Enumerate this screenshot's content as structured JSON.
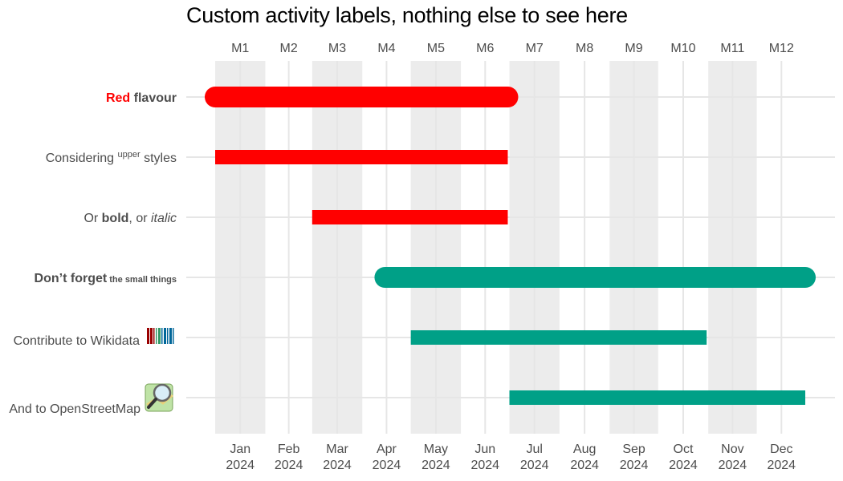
{
  "chart_data": {
    "type": "gantt",
    "title": "Custom activity labels, nothing else to see here",
    "x_axis_bottom": {
      "months": [
        "Jan",
        "Feb",
        "Mar",
        "Apr",
        "May",
        "Jun",
        "Jul",
        "Aug",
        "Sep",
        "Oct",
        "Nov",
        "Dec"
      ],
      "year": "2024"
    },
    "x_axis_top": [
      "M1",
      "M2",
      "M3",
      "M4",
      "M5",
      "M6",
      "M7",
      "M8",
      "M9",
      "M10",
      "M11",
      "M12"
    ],
    "shaded_months": [
      "Jan",
      "Mar",
      "May",
      "Jul",
      "Sep",
      "Nov"
    ],
    "grid": true,
    "activities": [
      {
        "label": [
          {
            "text": "Red",
            "bold": true,
            "color": "#ff0000"
          },
          {
            "text": " flavour",
            "bold": true
          }
        ],
        "start": "2024-01-01",
        "end": "2024-06-30",
        "color": "#ff0000",
        "style": "rounded",
        "thickness": "thick"
      },
      {
        "label": [
          {
            "text": "Considering "
          },
          {
            "text": "upper",
            "superscript": true
          },
          {
            "text": " styles"
          }
        ],
        "start": "2024-01-01",
        "end": "2024-06-30",
        "color": "#ff0000",
        "style": "flat",
        "thickness": "thin"
      },
      {
        "label": [
          {
            "text": "Or "
          },
          {
            "text": "bold",
            "bold": true
          },
          {
            "text": ", or "
          },
          {
            "text": "italic",
            "italic": true
          }
        ],
        "start": "2024-03-01",
        "end": "2024-06-30",
        "color": "#ff0000",
        "style": "flat",
        "thickness": "thin"
      },
      {
        "label": [
          {
            "text": "Don’t forget",
            "bold": true
          },
          {
            "text": " the small things",
            "bold": true,
            "small": true
          }
        ],
        "start": "2024-04-15",
        "end": "2024-12-31",
        "color": "#00a087",
        "style": "rounded",
        "thickness": "thick"
      },
      {
        "label": [
          {
            "text": "Contribute to Wikidata"
          }
        ],
        "icon": "wikidata-logo-icon",
        "start": "2024-05-01",
        "end": "2024-10-31",
        "color": "#00a087",
        "style": "flat",
        "thickness": "thin"
      },
      {
        "label": [
          {
            "text": "And to OpenStreetMap"
          }
        ],
        "icon": "openstreetmap-logo-icon",
        "start": "2024-07-01",
        "end": "2024-12-31",
        "color": "#00a087",
        "style": "flat",
        "thickness": "thin"
      }
    ],
    "colors": {
      "red": "#ff0000",
      "teal": "#00a087",
      "shade": "#ececec",
      "grid": "#e6e6e6"
    }
  }
}
